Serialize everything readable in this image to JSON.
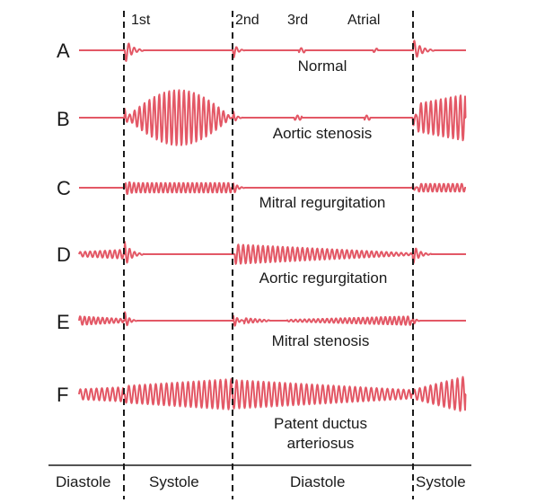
{
  "header": {
    "first": "1st",
    "second": "2nd",
    "third": "3rd",
    "atrial": "Atrial"
  },
  "rows": [
    {
      "letter": "A",
      "caption": "Normal"
    },
    {
      "letter": "B",
      "caption": "Aortic stenosis"
    },
    {
      "letter": "C",
      "caption": "Mitral regurgitation"
    },
    {
      "letter": "D",
      "caption": "Aortic regurgitation"
    },
    {
      "letter": "E",
      "caption": "Mitral stenosis"
    },
    {
      "letter": "F",
      "caption_line1": "Patent ductus",
      "caption_line2": "arteriosus"
    }
  ],
  "phases": {
    "p1": "Diastole",
    "p2": "Systole",
    "p3": "Diastole",
    "p4": "Systole"
  },
  "colors": {
    "trace": "#e35866",
    "divider": "#1a1a1a",
    "text": "#1a1a1a"
  }
}
